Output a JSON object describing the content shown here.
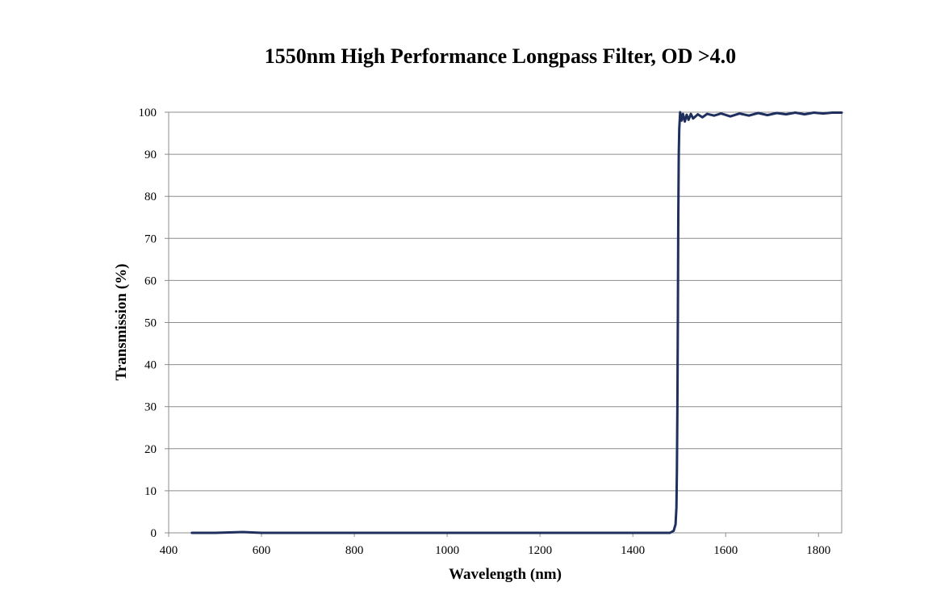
{
  "chart_data": {
    "type": "line",
    "title": "1550nm High Performance Longpass Filter, OD >4.0",
    "xlabel": "Wavelength (nm)",
    "ylabel": "Transmission (%)",
    "xlim": [
      400,
      1850
    ],
    "ylim": [
      0,
      100
    ],
    "x_ticks": [
      400,
      600,
      800,
      1000,
      1200,
      1400,
      1600,
      1800
    ],
    "y_ticks": [
      0,
      10,
      20,
      30,
      40,
      50,
      60,
      70,
      80,
      90,
      100
    ],
    "grid": "horizontal",
    "legend": "none",
    "series": [
      {
        "color": "#1f2f5e",
        "x": [
          450,
          500,
          560,
          600,
          700,
          800,
          900,
          1000,
          1100,
          1200,
          1300,
          1400,
          1480,
          1488,
          1492,
          1494,
          1495,
          1496,
          1497,
          1498,
          1499,
          1500,
          1502,
          1505,
          1508,
          1512,
          1516,
          1520,
          1525,
          1530,
          1540,
          1550,
          1560,
          1575,
          1590,
          1610,
          1630,
          1650,
          1670,
          1690,
          1710,
          1730,
          1750,
          1770,
          1790,
          1810,
          1830,
          1850
        ],
        "y": [
          0,
          0,
          0.2,
          0,
          0,
          0,
          0,
          0,
          0,
          0,
          0,
          0,
          0,
          0.5,
          2,
          6,
          15,
          30,
          52,
          75,
          90,
          96,
          100,
          98,
          99.6,
          97.8,
          99.4,
          98.2,
          99.6,
          98.5,
          99.5,
          98.8,
          99.6,
          99.2,
          99.7,
          99.0,
          99.7,
          99.2,
          99.8,
          99.3,
          99.8,
          99.5,
          99.9,
          99.5,
          99.9,
          99.7,
          99.9,
          99.9
        ]
      }
    ]
  }
}
